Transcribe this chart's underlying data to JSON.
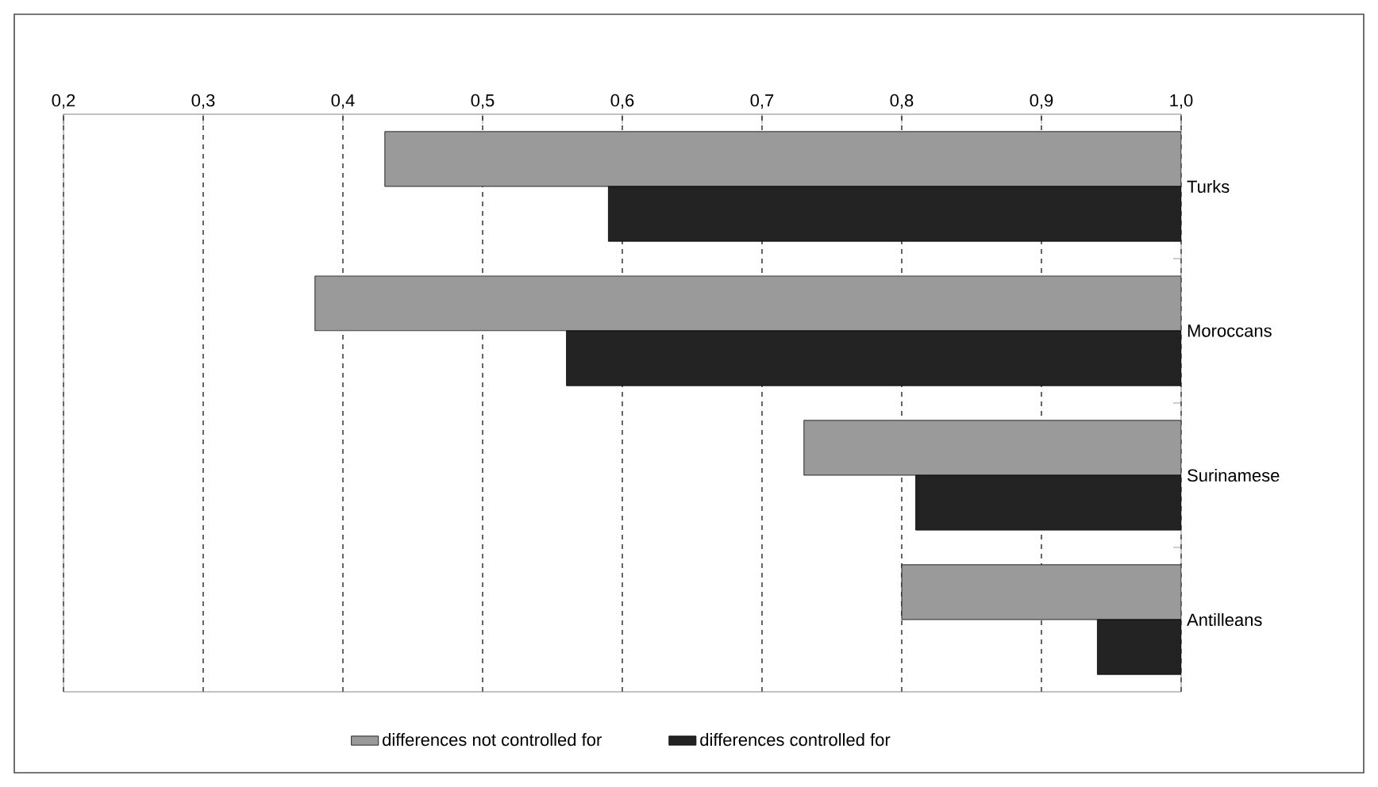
{
  "chart_data": {
    "type": "bar",
    "orientation": "horizontal",
    "categories": [
      "Turks",
      "Moroccans",
      "Surinamese",
      "Antilleans"
    ],
    "series": [
      {
        "name": "differences not controlled for",
        "color": "#9a9a9a",
        "base": [
          1,
          1,
          1,
          1
        ],
        "values": [
          -0.57,
          -0.62,
          -0.27,
          -0.2
        ]
      },
      {
        "name": "differences controlled for",
        "color": "#232323",
        "base": [
          1,
          1,
          1,
          1
        ],
        "values": [
          -0.41,
          -0.44,
          -0.19,
          -0.06
        ]
      }
    ],
    "xlim": [
      0.2,
      1.0
    ],
    "xticks": [
      {
        "value": 0.2,
        "label": "0,2"
      },
      {
        "value": 0.3,
        "label": "0,3"
      },
      {
        "value": 0.4,
        "label": "0,4"
      },
      {
        "value": 0.5,
        "label": "0,5"
      },
      {
        "value": 0.6,
        "label": "0,6"
      },
      {
        "value": 0.7,
        "label": "0,7"
      },
      {
        "value": 0.8,
        "label": "0,8"
      },
      {
        "value": 0.9,
        "label": "0,9"
      },
      {
        "value": 1.0,
        "label": "1,0"
      }
    ],
    "grid": "x",
    "legend": "bottom"
  }
}
